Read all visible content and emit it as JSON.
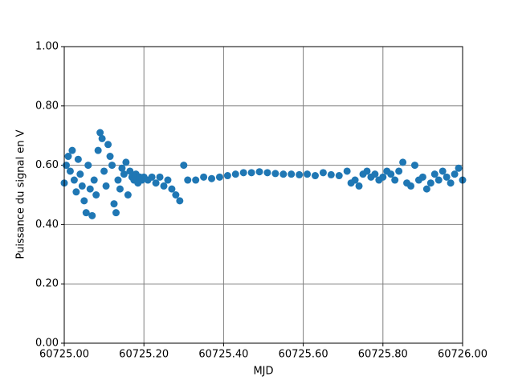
{
  "chart_data": {
    "type": "scatter",
    "x_label": "MJD",
    "y_label": "Puissance du signal en V",
    "color": "#1f77b4",
    "grid": true,
    "xlim": [
      60725.0,
      60726.0
    ],
    "xticks": [
      {
        "value": 60725.0,
        "label": "60725.00"
      },
      {
        "value": 60725.2,
        "label": "60725.20"
      },
      {
        "value": 60725.4,
        "label": "60725.40"
      },
      {
        "value": 60725.6,
        "label": "60725.60"
      },
      {
        "value": 60725.8,
        "label": "60725.80"
      },
      {
        "value": 60726.0,
        "label": "60726.00"
      }
    ],
    "ylim": [
      0,
      1
    ],
    "yticks": [
      {
        "value": 0,
        "label": "0.00"
      },
      {
        "value": 0.2,
        "label": "0.20"
      },
      {
        "value": 0.4,
        "label": "0.40"
      },
      {
        "value": 0.6,
        "label": "0.60"
      },
      {
        "value": 0.8,
        "label": "0.80"
      },
      {
        "value": 1,
        "label": "1.00"
      }
    ],
    "x": [
      60725.0,
      60725.005,
      60725.01,
      60725.015,
      60725.02,
      60725.025,
      60725.03,
      60725.035,
      60725.04,
      60725.045,
      60725.05,
      60725.055,
      60725.06,
      60725.065,
      60725.07,
      60725.075,
      60725.08,
      60725.085,
      60725.09,
      60725.095,
      60725.1,
      60725.105,
      60725.11,
      60725.115,
      60725.12,
      60725.125,
      60725.13,
      60725.135,
      60725.14,
      60725.145,
      60725.15,
      60725.155,
      60725.16,
      60725.165,
      60725.17,
      60725.175,
      60725.18,
      60725.185,
      60725.19,
      60725.195,
      60725.2,
      60725.21,
      60725.22,
      60725.23,
      60725.24,
      60725.25,
      60725.26,
      60725.27,
      60725.28,
      60725.29,
      60725.3,
      60725.31,
      60725.33,
      60725.35,
      60725.37,
      60725.39,
      60725.41,
      60725.43,
      60725.45,
      60725.47,
      60725.49,
      60725.51,
      60725.53,
      60725.55,
      60725.57,
      60725.59,
      60725.61,
      60725.63,
      60725.65,
      60725.67,
      60725.69,
      60725.71,
      60725.72,
      60725.73,
      60725.74,
      60725.75,
      60725.76,
      60725.77,
      60725.78,
      60725.79,
      60725.8,
      60725.81,
      60725.82,
      60725.83,
      60725.84,
      60725.85,
      60725.86,
      60725.87,
      60725.88,
      60725.89,
      60725.9,
      60725.91,
      60725.92,
      60725.93,
      60725.94,
      60725.95,
      60725.96,
      60725.97,
      60725.98,
      60725.99,
      60726.0
    ],
    "values": [
      0.54,
      0.6,
      0.63,
      0.58,
      0.65,
      0.55,
      0.51,
      0.62,
      0.57,
      0.53,
      0.48,
      0.44,
      0.6,
      0.52,
      0.43,
      0.55,
      0.5,
      0.65,
      0.71,
      0.69,
      0.58,
      0.53,
      0.67,
      0.63,
      0.6,
      0.47,
      0.44,
      0.55,
      0.52,
      0.59,
      0.57,
      0.61,
      0.5,
      0.58,
      0.56,
      0.55,
      0.57,
      0.54,
      0.56,
      0.55,
      0.56,
      0.55,
      0.56,
      0.54,
      0.56,
      0.53,
      0.55,
      0.52,
      0.5,
      0.48,
      0.6,
      0.55,
      0.55,
      0.56,
      0.555,
      0.56,
      0.565,
      0.57,
      0.575,
      0.575,
      0.578,
      0.575,
      0.572,
      0.57,
      0.57,
      0.568,
      0.57,
      0.565,
      0.575,
      0.568,
      0.565,
      0.58,
      0.54,
      0.55,
      0.53,
      0.57,
      0.58,
      0.56,
      0.57,
      0.55,
      0.56,
      0.58,
      0.57,
      0.55,
      0.58,
      0.61,
      0.54,
      0.53,
      0.6,
      0.55,
      0.56,
      0.52,
      0.54,
      0.57,
      0.55,
      0.58,
      0.56,
      0.54,
      0.57,
      0.59,
      0.55
    ]
  }
}
